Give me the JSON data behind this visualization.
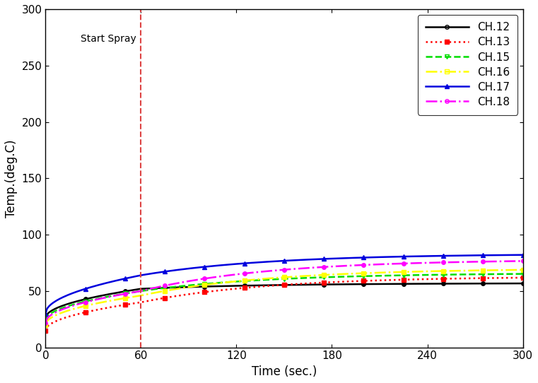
{
  "title": "",
  "xlabel": "Time (sec.)",
  "ylabel": "Temp.(deg.C)",
  "xlim": [
    0,
    300
  ],
  "ylim": [
    0,
    300
  ],
  "xticks": [
    0,
    60,
    120,
    180,
    240,
    300
  ],
  "yticks": [
    0,
    50,
    100,
    150,
    200,
    250,
    300
  ],
  "spray_x": 60,
  "spray_label": "Start Spray",
  "spray_line_color": "#dd4444",
  "channels": [
    {
      "name": "CH.12",
      "color": "#000000",
      "linestyle": "-",
      "marker": "o",
      "markevery": 25,
      "markersize": 4,
      "start": 26,
      "mid": 52,
      "end": 57
    },
    {
      "name": "CH.13",
      "color": "#ff0000",
      "linestyle": ":",
      "marker": "s",
      "markevery": 25,
      "markersize": 4,
      "start": 15,
      "mid": 40,
      "end": 63
    },
    {
      "name": "CH.15",
      "color": "#00dd00",
      "linestyle": "--",
      "marker": "v",
      "markevery": 25,
      "markersize": 4,
      "start": 24,
      "mid": 50,
      "end": 66
    },
    {
      "name": "CH.16",
      "color": "#ffff00",
      "linestyle": "-.",
      "marker": "s",
      "markevery": 25,
      "markersize": 4,
      "start": 20,
      "mid": 46,
      "end": 70
    },
    {
      "name": "CH.17",
      "color": "#0000dd",
      "linestyle": "-",
      "marker": "^",
      "markevery": 25,
      "markersize": 4,
      "start": 30,
      "mid": 64,
      "end": 83
    },
    {
      "name": "CH.18",
      "color": "#ff00ff",
      "linestyle": "-.",
      "marker": "o",
      "markevery": 25,
      "markersize": 4,
      "start": 22,
      "mid": 50,
      "end": 78
    }
  ],
  "legend_loc": "upper right",
  "background_color": "#ffffff",
  "figsize": [
    7.61,
    5.42
  ],
  "dpi": 100
}
